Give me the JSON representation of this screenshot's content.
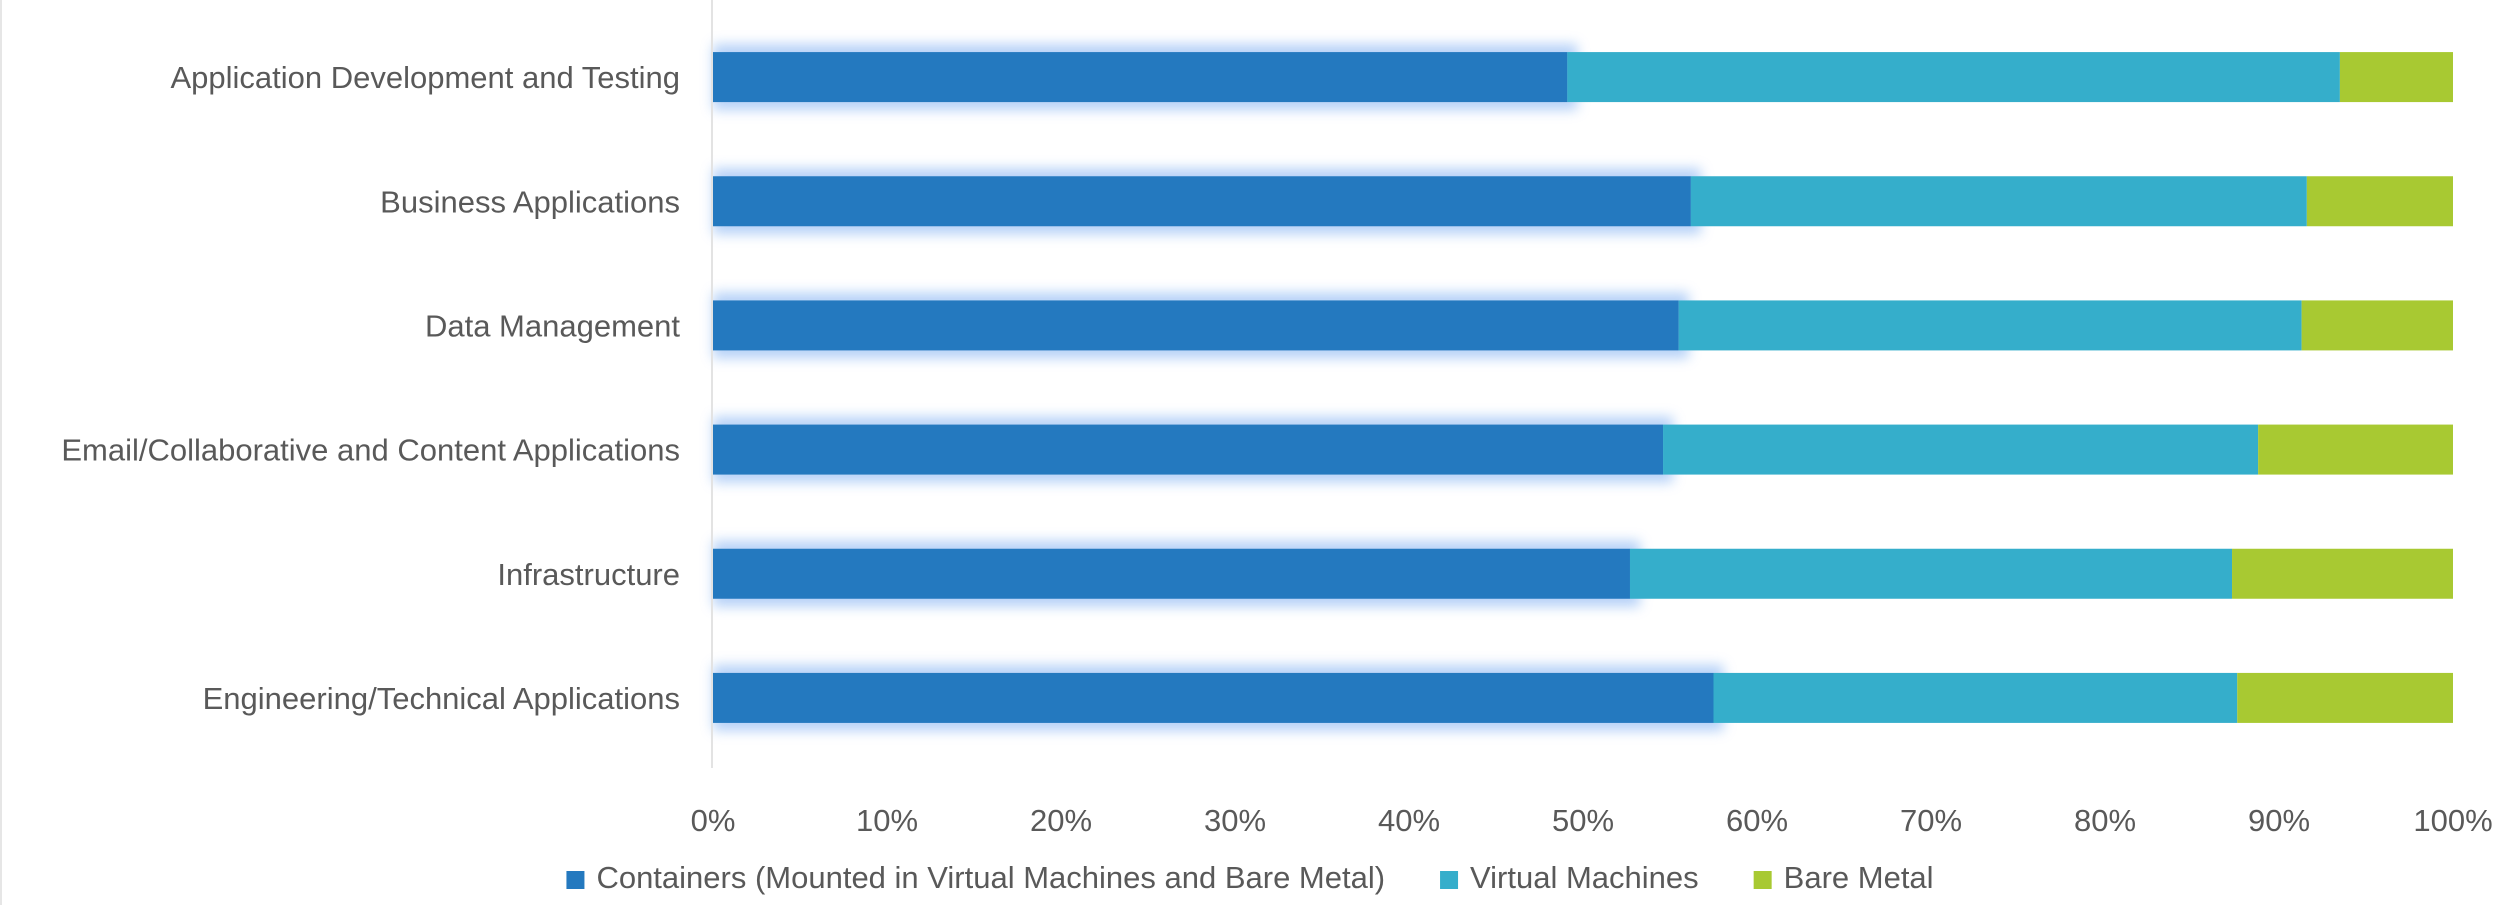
{
  "chart_data": {
    "type": "bar",
    "orientation": "horizontal",
    "stacked": true,
    "percent": true,
    "categories": [
      "Application Development and Testing",
      "Business Applications",
      "Data Management",
      "Email/Collaborative and Content Applications",
      "Infrastructure",
      "Engineering/Technical Applications"
    ],
    "series": [
      {
        "name": "Containers (Mounted in Virtual Machines and Bare Metal)",
        "color": "#2479bf",
        "values": [
          49.1,
          56.2,
          55.5,
          54.6,
          52.7,
          57.5
        ]
      },
      {
        "name": "Virtual Machines",
        "color": "#35aecb",
        "values": [
          44.4,
          35.4,
          35.8,
          34.2,
          34.6,
          30.1
        ]
      },
      {
        "name": "Bare Metal",
        "color": "#a8c932",
        "values": [
          6.5,
          8.4,
          8.7,
          11.2,
          12.7,
          12.4
        ]
      }
    ],
    "xlim": [
      0,
      100
    ],
    "xticks": [
      "0%",
      "10%",
      "20%",
      "30%",
      "40%",
      "50%",
      "60%",
      "70%",
      "80%",
      "90%",
      "100%"
    ],
    "title": "",
    "xlabel": "",
    "ylabel": "",
    "legend_position": "bottom",
    "grid": false
  }
}
